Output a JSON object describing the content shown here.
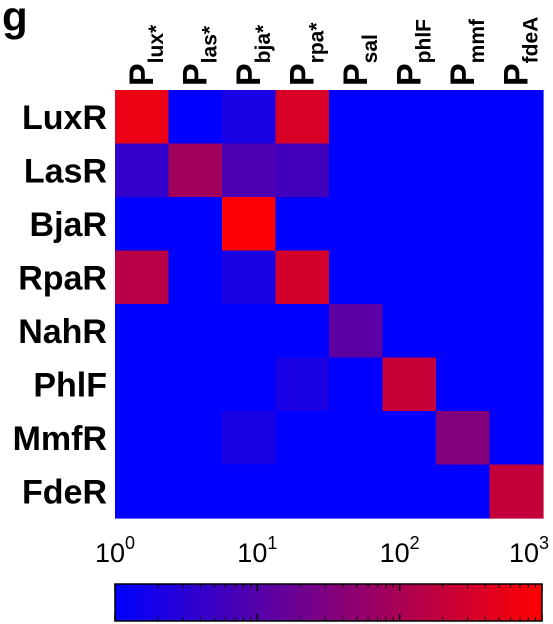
{
  "panel_label": "g",
  "chart_data": {
    "type": "heatmap",
    "title": "",
    "xlabel": "",
    "ylabel": "",
    "columns": [
      {
        "main": "P",
        "sub": "lux*"
      },
      {
        "main": "P",
        "sub": "las*"
      },
      {
        "main": "P",
        "sub": "bja*"
      },
      {
        "main": "P",
        "sub": "rpa*"
      },
      {
        "main": "P",
        "sub": "sal"
      },
      {
        "main": "P",
        "sub": "phlF"
      },
      {
        "main": "P",
        "sub": "mmf"
      },
      {
        "main": "P",
        "sub": "fdeA"
      }
    ],
    "rows": [
      "LuxR",
      "LasR",
      "BjaR",
      "RpaR",
      "NahR",
      "PhlF",
      "MmfR",
      "FdeR"
    ],
    "values": [
      [
        600,
        1,
        2,
        350,
        1,
        1,
        1,
        1
      ],
      [
        4,
        80,
        8,
        6,
        1,
        1,
        1,
        1
      ],
      [
        1,
        1,
        900,
        1,
        1,
        1,
        1,
        1
      ],
      [
        150,
        1,
        2,
        300,
        1,
        1,
        1,
        1
      ],
      [
        1,
        1,
        1,
        1,
        12,
        1,
        1,
        1
      ],
      [
        1,
        1,
        1,
        2,
        1,
        220,
        1,
        1
      ],
      [
        1,
        1,
        2,
        1,
        1,
        1,
        35,
        1
      ],
      [
        1,
        1,
        1,
        1,
        1,
        1,
        1,
        200
      ]
    ],
    "colorbar": {
      "scale": "log",
      "range": [
        1,
        1000
      ],
      "low_color": "#0000ff",
      "high_color": "#ff0000",
      "ticks": [
        {
          "value": 1,
          "base": "10",
          "exp": "0"
        },
        {
          "value": 10,
          "base": "10",
          "exp": "1"
        },
        {
          "value": 100,
          "base": "10",
          "exp": "2"
        },
        {
          "value": 1000,
          "base": "10",
          "exp": "3"
        }
      ]
    }
  }
}
